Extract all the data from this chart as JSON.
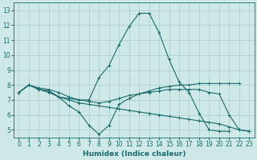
{
  "xlabel": "Humidex (Indice chaleur)",
  "background_color": "#cfe9e9",
  "grid_color": "#a8cccc",
  "line_color": "#1a6b6b",
  "xlim": [
    -0.5,
    23.5
  ],
  "ylim": [
    4.5,
    13.5
  ],
  "xticks": [
    0,
    1,
    2,
    3,
    4,
    5,
    6,
    7,
    8,
    9,
    10,
    11,
    12,
    13,
    14,
    15,
    16,
    17,
    18,
    19,
    20,
    21,
    22,
    23
  ],
  "yticks": [
    5,
    6,
    7,
    8,
    9,
    10,
    11,
    12,
    13
  ],
  "series": [
    {
      "x": [
        0,
        1,
        2,
        3,
        4,
        5,
        6,
        7,
        8,
        9,
        10,
        11,
        12,
        13,
        14,
        15,
        16,
        17,
        18,
        19,
        20,
        21,
        22,
        23
      ],
      "y": [
        7.5,
        8.0,
        7.8,
        7.7,
        7.5,
        7.2,
        7.0,
        7.0,
        8.5,
        9.3,
        10.7,
        11.9,
        12.8,
        12.8,
        11.5,
        9.7,
        8.2,
        7.5,
        6.1,
        5.0,
        4.9,
        4.9,
        null,
        null
      ]
    },
    {
      "x": [
        0,
        1,
        2,
        3,
        4,
        5,
        6,
        7,
        8,
        9,
        10,
        11,
        12,
        13,
        14,
        15,
        16,
        17,
        18,
        19,
        20,
        21,
        22,
        23
      ],
      "y": [
        7.5,
        8.0,
        7.7,
        7.6,
        7.2,
        6.6,
        6.2,
        5.3,
        4.7,
        5.3,
        6.7,
        7.1,
        7.4,
        7.6,
        7.8,
        7.9,
        8.0,
        8.0,
        8.1,
        8.1,
        8.1,
        8.1,
        8.1,
        null
      ]
    },
    {
      "x": [
        0,
        1,
        2,
        3,
        4,
        5,
        6,
        7,
        8,
        9,
        10,
        11,
        12,
        13,
        14,
        15,
        16,
        17,
        18,
        19,
        20,
        21,
        22,
        23
      ],
      "y": [
        7.5,
        8.0,
        7.7,
        7.6,
        7.2,
        7.1,
        7.0,
        6.9,
        6.8,
        6.9,
        7.1,
        7.3,
        7.4,
        7.5,
        7.6,
        7.7,
        7.7,
        7.7,
        7.7,
        7.5,
        7.4,
        6.0,
        5.0,
        4.9
      ]
    },
    {
      "x": [
        0,
        1,
        2,
        3,
        4,
        5,
        6,
        7,
        8,
        9,
        10,
        11,
        12,
        13,
        14,
        15,
        16,
        17,
        18,
        19,
        20,
        21,
        22,
        23
      ],
      "y": [
        7.5,
        8.0,
        7.7,
        7.5,
        7.2,
        7.0,
        6.8,
        6.7,
        6.6,
        6.5,
        6.4,
        6.3,
        6.2,
        6.1,
        6.0,
        5.9,
        5.8,
        5.7,
        5.6,
        5.5,
        5.4,
        5.2,
        5.0,
        4.9
      ]
    }
  ],
  "marker": "+",
  "markersize": 3,
  "linewidth": 0.8,
  "tick_fontsize": 5.5,
  "xlabel_fontsize": 6.5
}
